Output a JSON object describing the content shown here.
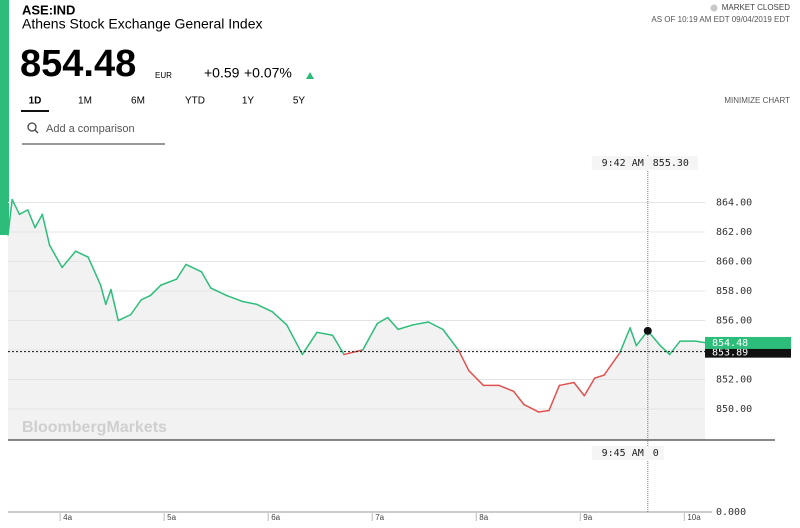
{
  "header": {
    "symbol": "ASE:IND",
    "name": "Athens Stock Exchange General Index",
    "price": "854.48",
    "currency": "EUR",
    "change": "+0.59",
    "change_pct": "+0.07%",
    "status": "MARKET CLOSED",
    "as_of": "AS OF 10:19 AM EDT 09/04/2019 EDT"
  },
  "tabs": [
    "1D",
    "1M",
    "6M",
    "YTD",
    "1Y",
    "5Y"
  ],
  "active_tab": "1D",
  "minimize": "MINIMIZE CHART",
  "search_placeholder": "Add a comparison",
  "watermark": "BloombergMarkets",
  "chart_data": {
    "type": "line",
    "x": [
      3.47,
      3.51,
      3.58,
      3.66,
      3.73,
      3.8,
      3.87,
      3.99,
      4.12,
      4.24,
      4.36,
      4.41,
      4.46,
      4.53,
      4.65,
      4.75,
      4.84,
      4.94,
      5.09,
      5.18,
      5.33,
      5.42,
      5.57,
      5.72,
      5.86,
      6.01,
      6.15,
      6.3,
      6.44,
      6.59,
      6.7,
      6.88,
      7.02,
      7.12,
      7.22,
      7.36,
      7.51,
      7.65,
      7.8,
      7.9,
      8.04,
      8.19,
      8.33,
      8.43,
      8.57,
      8.67,
      8.77,
      8.91,
      9.01,
      9.11,
      9.2,
      9.35,
      9.45,
      9.51,
      9.62,
      9.74,
      9.83,
      9.93,
      10.08,
      10.17
    ],
    "values": [
      861.8,
      864.2,
      863.2,
      863.5,
      862.3,
      863.2,
      861.1,
      859.6,
      860.7,
      860.3,
      858.4,
      857.1,
      858.1,
      856.0,
      856.4,
      857.4,
      857.7,
      858.4,
      858.8,
      859.8,
      859.3,
      858.2,
      857.7,
      857.3,
      857.1,
      856.6,
      855.7,
      853.7,
      855.2,
      855.0,
      853.7,
      854.0,
      855.8,
      856.2,
      855.4,
      855.7,
      855.9,
      855.4,
      854.0,
      852.6,
      851.6,
      851.6,
      851.2,
      850.3,
      849.8,
      849.9,
      851.6,
      851.8,
      850.9,
      852.1,
      852.3,
      853.8,
      855.5,
      854.3,
      855.3,
      854.3,
      853.7,
      854.6,
      854.6,
      854.5
    ],
    "up_color": "#2dbd7a",
    "down_color": "#e0524f",
    "xlim": [
      3.47,
      10.17
    ],
    "xticks": [
      {
        "value": 4,
        "label": "4a"
      },
      {
        "value": 5,
        "label": "5a"
      },
      {
        "value": 6,
        "label": "6a"
      },
      {
        "value": 7,
        "label": "7a"
      },
      {
        "value": 8,
        "label": "8a"
      },
      {
        "value": 9,
        "label": "9a"
      },
      {
        "value": 10,
        "label": "10a"
      }
    ],
    "ylim": [
      847.9,
      867.9
    ],
    "yticks": [
      {
        "value": 850,
        "label": "850.00"
      },
      {
        "value": 852,
        "label": "852.00"
      },
      {
        "value": 854,
        "label": "854.00"
      },
      {
        "value": 856,
        "label": "856.00"
      },
      {
        "value": 858,
        "label": "858.00"
      },
      {
        "value": 860,
        "label": "860.00"
      },
      {
        "value": 862,
        "label": "862.00"
      },
      {
        "value": 864,
        "label": "864.00"
      }
    ],
    "grid": true,
    "last_price": 854.48,
    "prev_close": 853.89,
    "crosshair": {
      "x": 9.62,
      "time": "9:42 AM",
      "price": {
        "value": 855.3,
        "label": "855.30"
      }
    },
    "volume": {
      "time": "9:45 AM",
      "value": 0,
      "yticks": [
        {
          "value": 0,
          "label": "0.000"
        }
      ]
    }
  }
}
